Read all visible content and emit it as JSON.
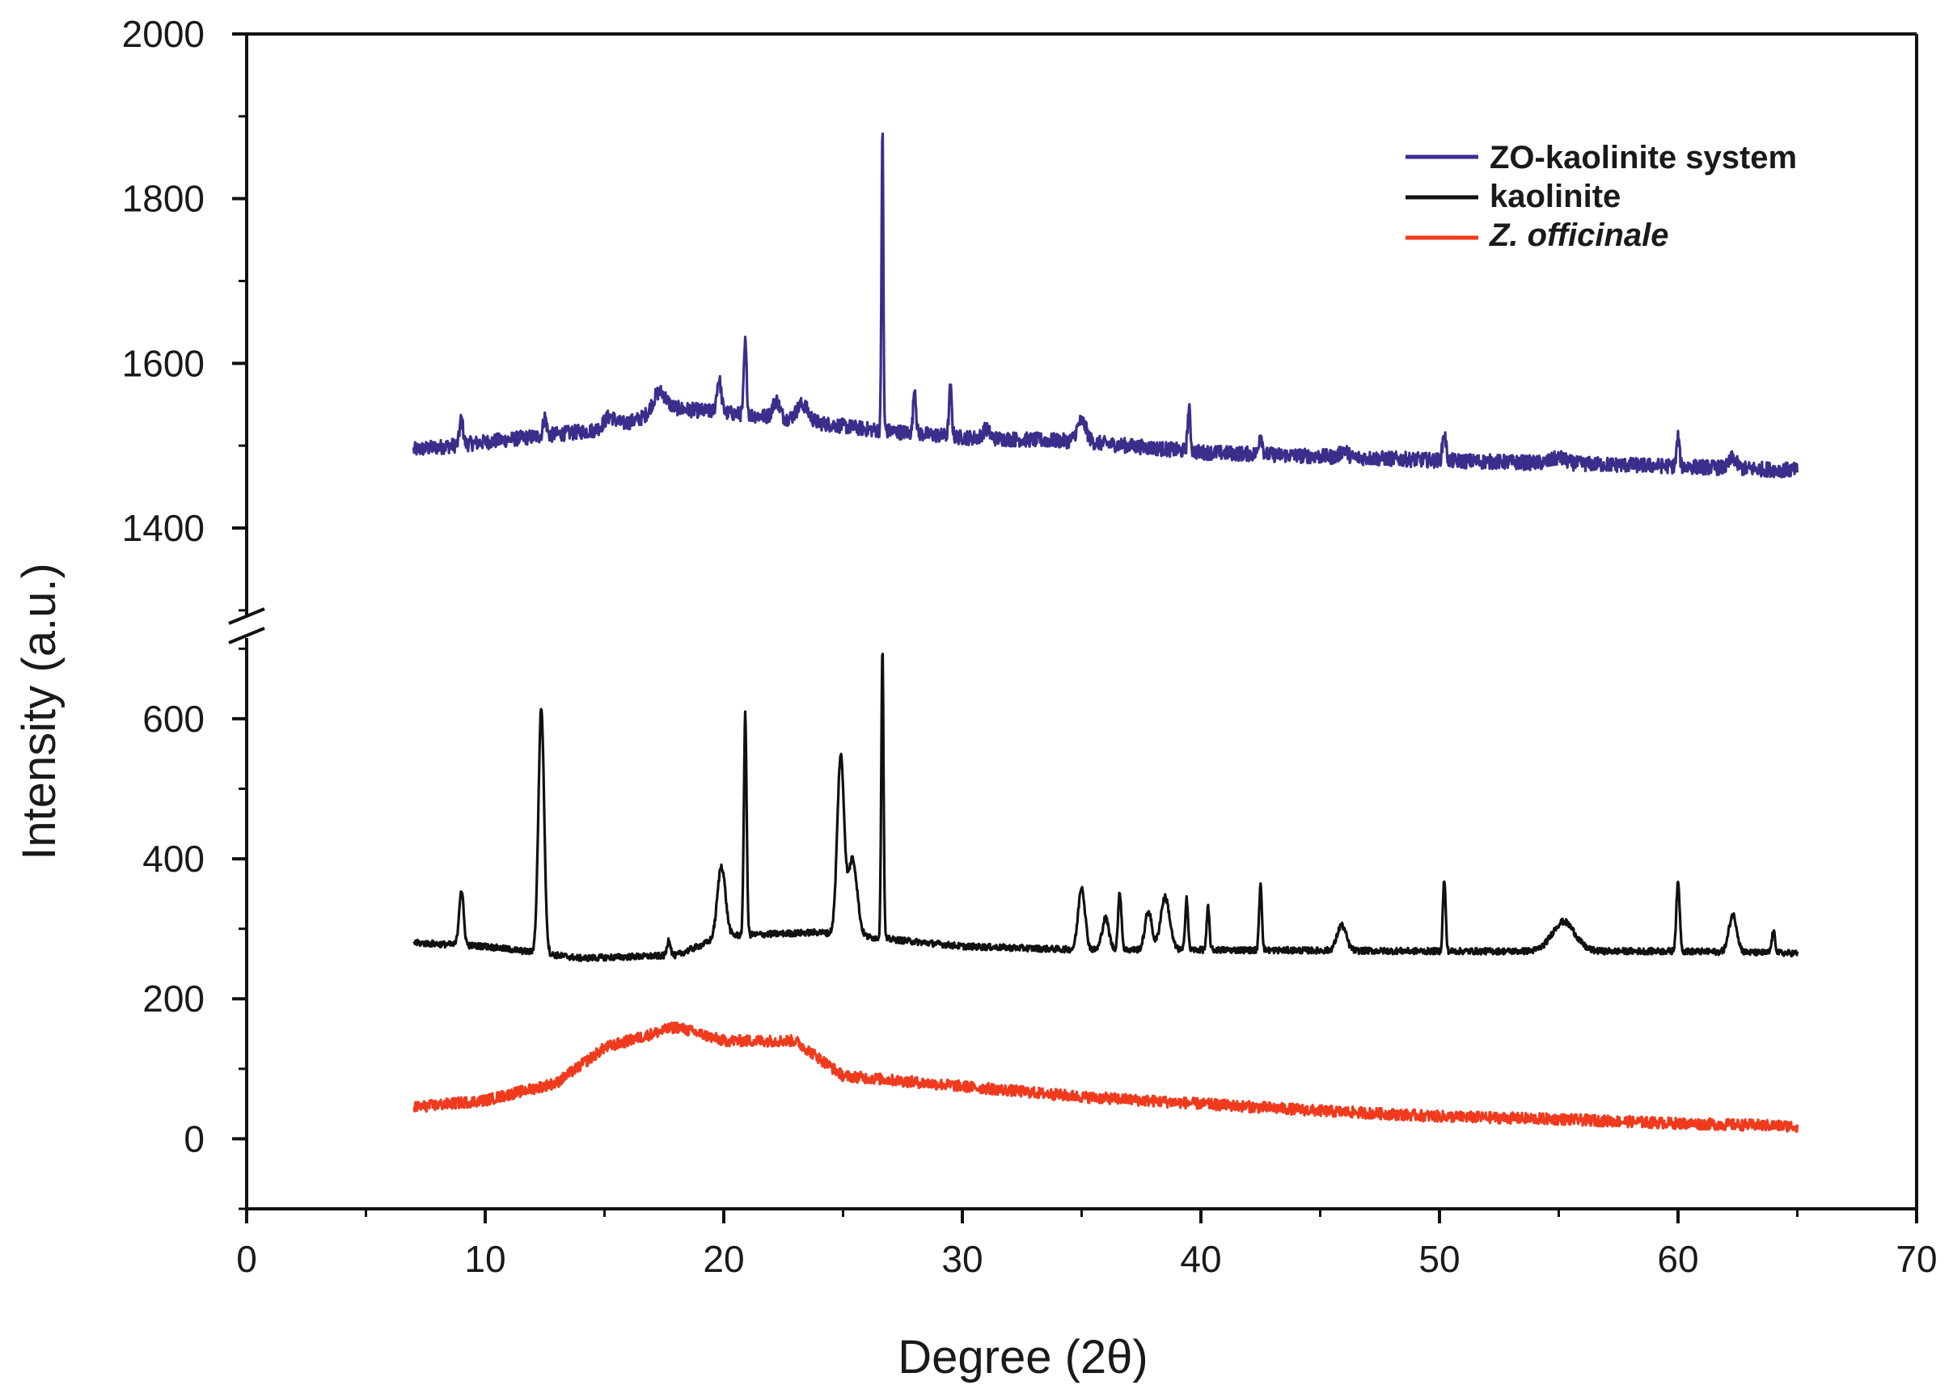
{
  "chart_data": {
    "type": "line",
    "title": "",
    "xlabel": "Degree (2θ)",
    "ylabel": "Intensity (a.u.)",
    "xlim": [
      0,
      70
    ],
    "x_ticks": [
      "0",
      "10",
      "20",
      "30",
      "40",
      "50",
      "60",
      "70"
    ],
    "y_axis_break": {
      "lower_range": [
        -100,
        720
      ],
      "upper_range": [
        1290,
        2000
      ]
    },
    "y_ticks_lower": [
      "0",
      "200",
      "400",
      "600"
    ],
    "y_ticks_upper": [
      "1400",
      "1600",
      "1800",
      "2000"
    ],
    "legend_position": "top-right",
    "series": [
      {
        "name": "ZO-kaolinite system",
        "color": "#3a2e8c",
        "baseline": [
          [
            7,
            1495
          ],
          [
            15,
            1520
          ],
          [
            18,
            1545
          ],
          [
            22,
            1535
          ],
          [
            26,
            1520
          ],
          [
            30,
            1510
          ],
          [
            35,
            1505
          ],
          [
            40,
            1492
          ],
          [
            50,
            1482
          ],
          [
            60,
            1475
          ],
          [
            65,
            1470
          ]
        ],
        "peaks": [
          [
            9,
            1532,
            0.15
          ],
          [
            12.5,
            1535,
            0.15
          ],
          [
            15.2,
            1535,
            0.5
          ],
          [
            17.3,
            1565,
            0.6
          ],
          [
            19.8,
            1580,
            0.2
          ],
          [
            20.9,
            1625,
            0.12
          ],
          [
            22.2,
            1555,
            0.3
          ],
          [
            23.3,
            1550,
            0.5
          ],
          [
            26.65,
            1885,
            0.08
          ],
          [
            28,
            1570,
            0.12
          ],
          [
            29.5,
            1570,
            0.12
          ],
          [
            31,
            1520,
            0.3
          ],
          [
            35,
            1530,
            0.4
          ],
          [
            39.5,
            1545,
            0.12
          ],
          [
            42.5,
            1515,
            0.15
          ],
          [
            46,
            1495,
            0.3
          ],
          [
            50.2,
            1515,
            0.15
          ],
          [
            55,
            1485,
            0.6
          ],
          [
            60,
            1510,
            0.12
          ],
          [
            62.3,
            1485,
            0.3
          ]
        ]
      },
      {
        "name": "kaolinite",
        "color": "#111111",
        "baseline": [
          [
            7,
            280
          ],
          [
            10,
            275
          ],
          [
            14,
            258
          ],
          [
            18,
            262
          ],
          [
            20,
            290
          ],
          [
            24,
            295
          ],
          [
            27,
            285
          ],
          [
            30,
            275
          ],
          [
            35,
            270
          ],
          [
            40,
            270
          ],
          [
            50,
            268
          ],
          [
            60,
            268
          ],
          [
            65,
            265
          ]
        ],
        "peaks": [
          [
            9,
            355,
            0.2
          ],
          [
            12.35,
            615,
            0.25
          ],
          [
            17.7,
            285,
            0.15
          ],
          [
            19.9,
            390,
            0.35
          ],
          [
            20.9,
            610,
            0.12
          ],
          [
            24.9,
            545,
            0.3
          ],
          [
            25.4,
            400,
            0.4
          ],
          [
            26.65,
            700,
            0.1
          ],
          [
            35,
            360,
            0.3
          ],
          [
            36,
            315,
            0.3
          ],
          [
            36.6,
            350,
            0.15
          ],
          [
            37.8,
            325,
            0.3
          ],
          [
            38.5,
            345,
            0.4
          ],
          [
            39.4,
            345,
            0.12
          ],
          [
            40.3,
            330,
            0.12
          ],
          [
            42.5,
            365,
            0.12
          ],
          [
            45.9,
            305,
            0.4
          ],
          [
            50.2,
            370,
            0.12
          ],
          [
            55.2,
            310,
            1.0
          ],
          [
            60,
            365,
            0.15
          ],
          [
            62.3,
            320,
            0.35
          ],
          [
            64,
            295,
            0.15
          ]
        ]
      },
      {
        "name": "Z. officinale",
        "color": "#f03a1e",
        "baseline": [
          [
            7,
            45
          ],
          [
            10,
            55
          ],
          [
            13,
            80
          ],
          [
            15,
            130
          ],
          [
            18,
            160
          ],
          [
            20,
            140
          ],
          [
            23,
            140
          ],
          [
            25,
            90
          ],
          [
            30,
            75
          ],
          [
            35,
            60
          ],
          [
            40,
            50
          ],
          [
            45,
            40
          ],
          [
            50,
            32
          ],
          [
            55,
            28
          ],
          [
            60,
            22
          ],
          [
            65,
            18
          ]
        ],
        "peaks": []
      }
    ]
  }
}
